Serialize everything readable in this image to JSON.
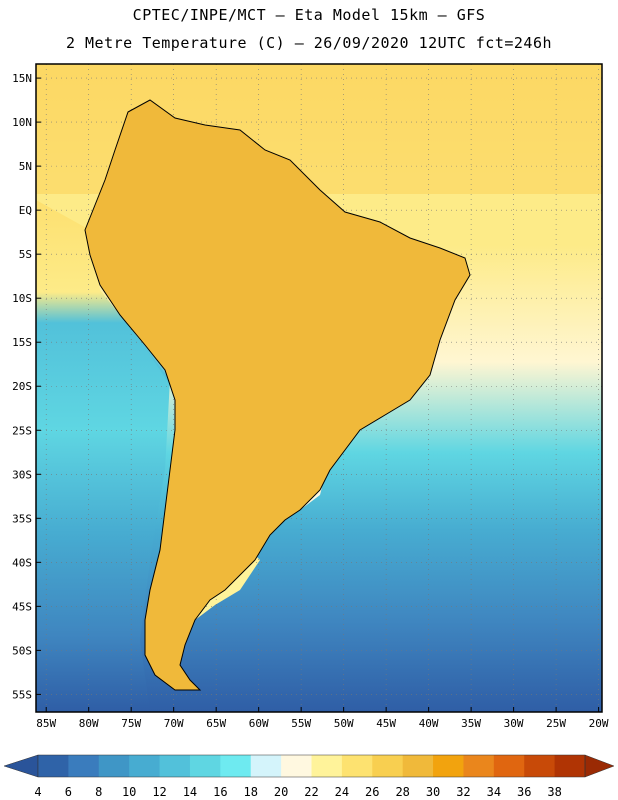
{
  "header": {
    "line1": "CPTEC/INPE/MCT –  Eta Model 15km – GFS",
    "line2": "2 Metre Temperature (C) – 26/09/2020 12UTC fct=246h"
  },
  "lat_labels": [
    "15N",
    "10N",
    "5N",
    "EQ",
    "5S",
    "10S",
    "15S",
    "20S",
    "25S",
    "30S",
    "35S",
    "40S",
    "45S",
    "50S",
    "55S"
  ],
  "lat_values": [
    15,
    10,
    5,
    0,
    -5,
    -10,
    -15,
    -20,
    -25,
    -30,
    -35,
    -40,
    -45,
    -50,
    -55
  ],
  "lon_labels": [
    "85W",
    "80W",
    "75W",
    "70W",
    "65W",
    "60W",
    "55W",
    "50W",
    "45W",
    "40W",
    "35W",
    "30W",
    "25W",
    "20W"
  ],
  "lon_values": [
    -85,
    -80,
    -75,
    -70,
    -65,
    -60,
    -55,
    -50,
    -45,
    -40,
    -35,
    -30,
    -25,
    -20
  ],
  "colorbar": {
    "labels": [
      "4",
      "6",
      "8",
      "10",
      "12",
      "14",
      "16",
      "18",
      "20",
      "22",
      "24",
      "26",
      "28",
      "30",
      "32",
      "34",
      "36",
      "38"
    ],
    "colors": [
      "#2f63a8",
      "#3a7cbd",
      "#3f96c6",
      "#47acd1",
      "#52c1da",
      "#5fd6e2",
      "#6eeaf0",
      "#d4f4fb",
      "#fff8e0",
      "#fff39a",
      "#fde270",
      "#f8cf50",
      "#f0b93a",
      "#f2a30e",
      "#ea861c",
      "#e06610",
      "#c84a08",
      "#b03404"
    ],
    "under_color": "#2a549a",
    "over_color": "#9a2a04"
  }
}
